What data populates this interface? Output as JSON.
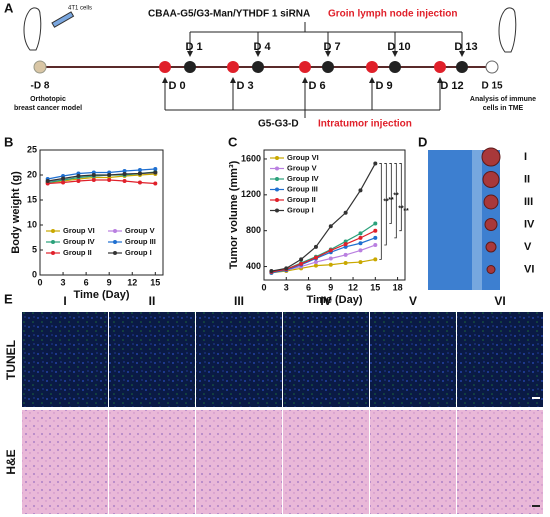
{
  "panel_labels": [
    "A",
    "B",
    "C",
    "D",
    "E"
  ],
  "timeline": {
    "top_label": "CBAA-G5/G3-Man/YTHDF 1 siRNA",
    "top_route": "Groin lymph node injection",
    "top_days": [
      "D 1",
      "D 4",
      "D 7",
      "D 10",
      "D 13"
    ],
    "bottom_days": [
      "D 0",
      "D 3",
      "D 6",
      "D 9",
      "D 12"
    ],
    "bottom_label": "G5-G3-D",
    "bottom_route": "Intratumor injection",
    "start_day": "-D 8",
    "start_note": [
      "Orthotopic",
      "breast cancer model"
    ],
    "cells": "4T1 cells",
    "end_day": "D 15",
    "end_note": [
      "Analysis of immune",
      "cells in TME"
    ]
  },
  "chart_data": [
    {
      "type": "line",
      "y_label": "Body weight (g)",
      "x_label": "Time (Day)",
      "x": [
        1,
        3,
        5,
        7,
        9,
        11,
        13,
        15
      ],
      "xlim": [
        0,
        16
      ],
      "xticks": [
        0,
        3,
        6,
        9,
        12,
        15
      ],
      "ylim": [
        0,
        25
      ],
      "yticks": [
        0,
        5,
        10,
        15,
        20,
        25
      ],
      "legend": "lower-center",
      "series": [
        {
          "name": "Group VI",
          "color": "#c9a800",
          "values": [
            18.5,
            18.8,
            19.2,
            19.5,
            19.5,
            19.8,
            20,
            20.2
          ]
        },
        {
          "name": "Group V",
          "color": "#b97fe0",
          "values": [
            18.8,
            19,
            19.5,
            19.8,
            20,
            20.2,
            20.3,
            20.5
          ]
        },
        {
          "name": "Group IV",
          "color": "#2aa17a",
          "values": [
            18.5,
            19,
            19.5,
            19.8,
            20,
            20,
            20.3,
            20.6
          ]
        },
        {
          "name": "Group III",
          "color": "#1f6fd0",
          "values": [
            19.2,
            19.8,
            20.3,
            20.5,
            20.5,
            20.8,
            21,
            21.2
          ]
        },
        {
          "name": "Group II",
          "color": "#e0202a",
          "values": [
            18.3,
            18.5,
            18.8,
            19,
            19,
            18.8,
            18.5,
            18.3
          ]
        },
        {
          "name": "Group I",
          "color": "#333333",
          "values": [
            18.8,
            19.3,
            19.8,
            20,
            20,
            20.2,
            20.3,
            20.5
          ]
        }
      ]
    },
    {
      "type": "line",
      "y_label": "Tumor volume (mm³)",
      "x_label": "Time (Day)",
      "x": [
        1,
        3,
        5,
        7,
        9,
        11,
        13,
        15
      ],
      "xlim": [
        0,
        19
      ],
      "xticks": [
        0,
        3,
        6,
        9,
        12,
        15,
        18
      ],
      "ylim": [
        250,
        1700
      ],
      "yticks": [
        400,
        800,
        1200,
        1600
      ],
      "legend": "upper-left",
      "significance": [
        "**",
        "**",
        "**",
        "**",
        "**"
      ],
      "series": [
        {
          "name": "Group VI",
          "color": "#c9a800",
          "values": [
            330,
            350,
            380,
            410,
            420,
            440,
            450,
            480
          ]
        },
        {
          "name": "Group V",
          "color": "#b97fe0",
          "values": [
            340,
            360,
            400,
            450,
            490,
            530,
            580,
            640
          ]
        },
        {
          "name": "Group IV",
          "color": "#2aa17a",
          "values": [
            340,
            370,
            440,
            510,
            590,
            680,
            770,
            880
          ]
        },
        {
          "name": "Group III",
          "color": "#1f6fd0",
          "values": [
            330,
            360,
            420,
            490,
            560,
            620,
            660,
            720
          ]
        },
        {
          "name": "Group II",
          "color": "#e0202a",
          "values": [
            340,
            370,
            430,
            500,
            580,
            650,
            720,
            800
          ]
        },
        {
          "name": "Group I",
          "color": "#333333",
          "values": [
            350,
            380,
            480,
            620,
            850,
            1000,
            1250,
            1550
          ]
        }
      ]
    }
  ],
  "photo": {
    "labels": [
      "I",
      "II",
      "III",
      "IV",
      "V",
      "VI"
    ]
  },
  "histology": {
    "columns": [
      "I",
      "II",
      "III",
      "IV",
      "V",
      "VI"
    ],
    "rows": [
      "TUNEL",
      "H&E"
    ]
  }
}
